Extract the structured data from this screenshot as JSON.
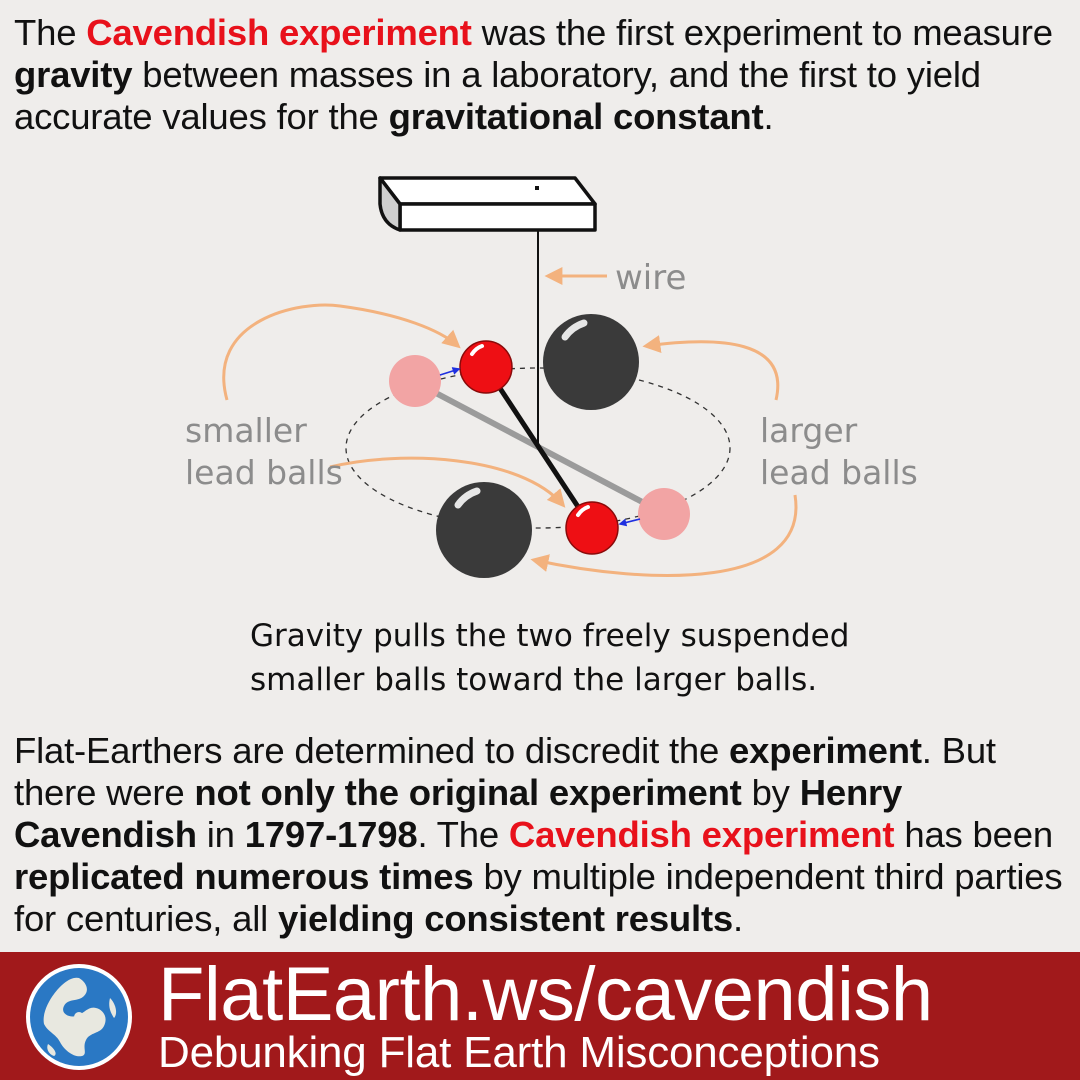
{
  "intro": {
    "s1": "The ",
    "s2": "Cavendish experiment",
    "s3": " was the first experiment to measure ",
    "s4": "gravity",
    "s5": " between masses in a laboratory, and the first to yield accurate values for the ",
    "s6": "gravitational constant",
    "s7": "."
  },
  "diagram": {
    "wire_label": "wire",
    "smaller_label_1": "smaller",
    "smaller_label_2": "lead balls",
    "larger_label_1": "larger",
    "larger_label_2": "lead balls",
    "caption_1": "Gravity pulls the two freely suspended",
    "caption_2": "smaller balls toward the larger balls.",
    "colors": {
      "small_ball": "#ee0f14",
      "small_ball_ghost": "#f2a4a4",
      "large_ball": "#3a3a3a",
      "arrow": "#f3b27e",
      "motion_arrow": "#1e2fe0"
    }
  },
  "outro": {
    "s1": "Flat-Earthers are determined to discredit the ",
    "s2": "experiment",
    "s3": ". But there were ",
    "s4": "not only the original experiment",
    "s5": " by ",
    "s6": "Henry Cavendish",
    "s7": " in ",
    "s8": "1797-1798",
    "s9": ". The ",
    "s10": "Cavendish experiment",
    "s11": " has been ",
    "s12": "replicated numerous times",
    "s13": " by multiple independent third parties for centuries, all ",
    "s14": "yielding consistent results",
    "s15": "."
  },
  "footer": {
    "site": "FlatEarth.ws/cavendish",
    "tagline": "Debunking Flat Earth Misconceptions",
    "logo_icon": "globe-icon",
    "background": "#a1191b"
  }
}
